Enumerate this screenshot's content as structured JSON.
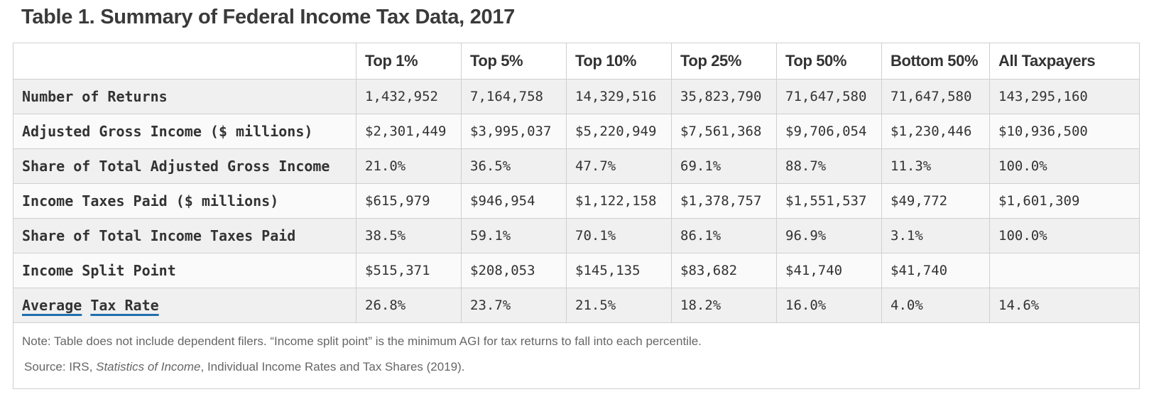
{
  "title": "Table 1. Summary of Federal Income Tax Data, 2017",
  "table": {
    "corner": "",
    "columns": [
      "Top 1%",
      "Top 5%",
      "Top 10%",
      "Top 25%",
      "Top 50%",
      "Bottom 50%",
      "All Taxpayers"
    ],
    "rows": [
      {
        "label": "Number of Returns",
        "values": [
          "1,432,952",
          "7,164,758",
          "14,329,516",
          "35,823,790",
          "71,647,580",
          "71,647,580",
          "143,295,160"
        ]
      },
      {
        "label": "Adjusted Gross Income ($ millions)",
        "values": [
          "$2,301,449",
          "$3,995,037",
          "$5,220,949",
          "$7,561,368",
          "$9,706,054",
          "$1,230,446",
          "$10,936,500"
        ]
      },
      {
        "label": "Share of Total Adjusted Gross Income",
        "values": [
          "21.0%",
          "36.5%",
          "47.7%",
          "69.1%",
          "88.7%",
          "11.3%",
          "100.0%"
        ]
      },
      {
        "label": "Income Taxes Paid ($ millions)",
        "values": [
          "$615,979",
          "$946,954",
          "$1,122,158",
          "$1,378,757",
          "$1,551,537",
          "$49,772",
          "$1,601,309"
        ]
      },
      {
        "label": "Share of Total Income Taxes Paid",
        "values": [
          "38.5%",
          "59.1%",
          "70.1%",
          "86.1%",
          "96.9%",
          "3.1%",
          "100.0%"
        ]
      },
      {
        "label": "Income Split Point",
        "values": [
          "$515,371",
          "$208,053",
          "$145,135",
          "$83,682",
          "$41,740",
          "$41,740",
          ""
        ]
      },
      {
        "label_link_1": "Average",
        "label_link_2": "Tax Rate",
        "values": [
          "26.8%",
          "23.7%",
          "21.5%",
          "18.2%",
          "16.0%",
          "4.0%",
          "14.6%"
        ]
      }
    ]
  },
  "notes": {
    "note": "Note: Table does not include dependent filers. “Income split point” is the minimum AGI for tax returns to fall into each percentile.",
    "source_prefix": "Source: IRS, ",
    "source_italic": "Statistics of Income",
    "source_suffix": ", Individual Income Rates and Tax Shares (2019)."
  },
  "colors": {
    "link_underline": "#1f6fae",
    "row_shade": "#f0f0f0",
    "border": "#cfcfcf"
  }
}
